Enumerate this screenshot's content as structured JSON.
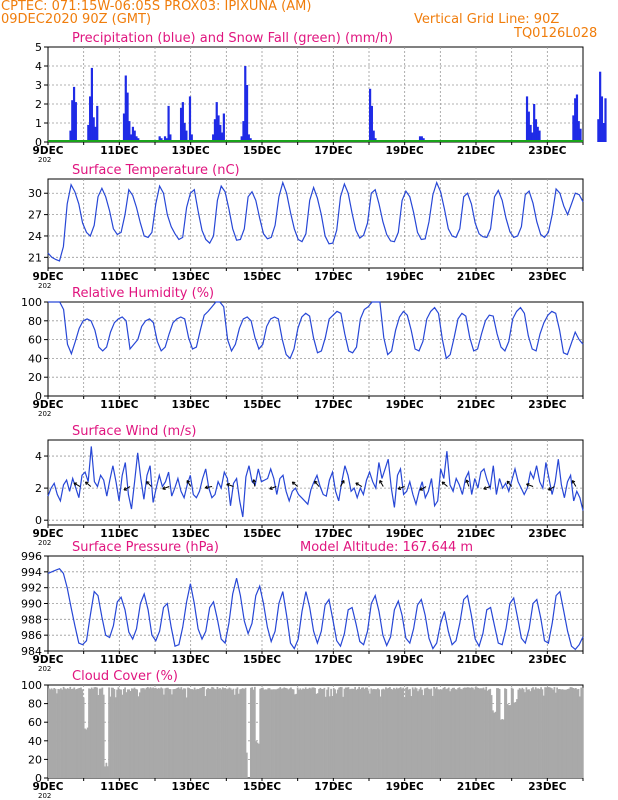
{
  "header": {
    "line1": "CPTEC:    071:15W-06:05S   PROX03: IPIXUNA (AM)",
    "line2_left": "09DEC2020 90Z (GMT)",
    "line2_right": "Vertical Grid Line: 90Z",
    "line3_right": "TQ0126L028"
  },
  "colors": {
    "header_text": "#f07d0c",
    "panel_title": "#e0157f",
    "series_line": "#2747d6",
    "bars_precip": "#1f2be6",
    "bars_snow": "#1aa31a",
    "cloud_fill": "#a9a9a9",
    "arrow": "#000000"
  },
  "x_axis": {
    "tick_labels": [
      "9DEC",
      "11DEC",
      "13DEC",
      "15DEC",
      "17DEC",
      "19DEC",
      "21DEC",
      "23DEC"
    ],
    "year_fragment": "202"
  },
  "chart_data": [
    {
      "type": "bar",
      "title": "Precipitation (blue) and Snow Fall (green) (mm/h)",
      "ylim": [
        0,
        5
      ],
      "yticks": [
        "0",
        "1",
        "2",
        "3",
        "4",
        "5"
      ],
      "series": [
        {
          "name": "Precipitation",
          "type": "bar",
          "x_days": [
            0.6,
            0.65,
            0.7,
            0.75,
            1.1,
            1.15,
            1.2,
            1.25,
            1.3,
            1.35,
            2.1,
            2.15,
            2.2,
            2.25,
            2.3,
            2.35,
            2.4,
            2.45,
            2.5,
            3.1,
            3.15,
            3.2,
            3.25,
            3.3,
            3.35,
            3.4,
            3.7,
            3.75,
            3.8,
            3.85,
            3.9,
            3.95,
            4.0,
            4.6,
            4.65,
            4.7,
            4.75,
            4.8,
            4.85,
            4.9,
            5.4,
            5.45,
            5.5,
            5.55,
            5.6,
            5.65,
            5.7,
            5.75,
            6.0,
            9.0,
            9.05,
            9.1,
            9.15,
            10.4,
            10.45,
            10.5,
            13.4,
            13.45,
            13.5,
            13.55,
            13.6,
            13.65,
            13.7,
            13.75,
            14.7,
            14.75,
            14.8,
            14.85,
            14.9,
            15.4,
            15.45,
            15.5,
            15.55,
            15.6
          ],
          "values": [
            0.6,
            2.2,
            2.9,
            2.1,
            0.9,
            2.4,
            3.9,
            1.3,
            0.8,
            1.9,
            1.5,
            3.5,
            2.6,
            1.1,
            0.4,
            0.8,
            0.6,
            0.3,
            0.2,
            0.3,
            0.2,
            0.1,
            0.3,
            0.2,
            1.9,
            0.4,
            1.8,
            2.1,
            1.0,
            0.6,
            0.1,
            2.4,
            0.4,
            0.4,
            1.2,
            2.1,
            1.4,
            0.9,
            0.5,
            1.5,
            0.3,
            1.1,
            4.0,
            3.0,
            0.4,
            0.2,
            0.1,
            0.0,
            0.1,
            2.8,
            1.9,
            0.6,
            0.2,
            0.3,
            0.3,
            0.2,
            2.4,
            1.6,
            0.9,
            0.5,
            2.0,
            1.2,
            0.8,
            0.6,
            1.4,
            2.3,
            2.5,
            1.1,
            0.7,
            1.2,
            3.7,
            2.4,
            1.0,
            2.3
          ]
        },
        {
          "name": "Snow Fall",
          "type": "line",
          "values_note": "0"
        }
      ]
    },
    {
      "type": "line",
      "title": "Surface Temperature (nC)",
      "ylim": [
        19.5,
        32
      ],
      "yticks": [
        "21",
        "24",
        "27",
        "30"
      ],
      "x_days_step": 0.25,
      "values": [
        21.6,
        21.0,
        20.7,
        20.5,
        22.5,
        28.5,
        31.2,
        30.2,
        28.5,
        25.8,
        24.5,
        24.0,
        25.5,
        29.5,
        30.7,
        29.5,
        27.5,
        25.0,
        24.2,
        24.5,
        27.0,
        30.5,
        29.7,
        28.0,
        25.8,
        24.0,
        23.8,
        24.5,
        28.5,
        31.0,
        30.0,
        27.0,
        25.3,
        24.3,
        23.5,
        23.8,
        28.0,
        30.0,
        30.5,
        27.5,
        24.8,
        23.5,
        23.0,
        24.0,
        29.0,
        31.0,
        30.2,
        27.8,
        25.0,
        23.4,
        23.5,
        25.0,
        29.5,
        30.2,
        29.0,
        26.5,
        24.3,
        23.6,
        23.8,
        25.5,
        29.5,
        31.5,
        30.0,
        27.3,
        25.0,
        23.5,
        23.2,
        24.3,
        29.0,
        30.8,
        29.3,
        27.0,
        24.0,
        22.9,
        23.0,
        24.8,
        29.5,
        31.3,
        30.0,
        27.2,
        24.8,
        23.7,
        24.1,
        25.8,
        30.0,
        30.5,
        28.5,
        26.0,
        24.2,
        23.3,
        23.2,
        24.5,
        29.0,
        30.3,
        29.5,
        27.3,
        24.5,
        23.5,
        23.6,
        26.0,
        29.8,
        31.5,
        30.2,
        27.8,
        25.0,
        24.0,
        23.8,
        25.0,
        29.5,
        30.0,
        28.5,
        25.8,
        24.3,
        23.9,
        23.8,
        25.0,
        29.5,
        30.4,
        29.0,
        26.5,
        24.6,
        23.8,
        24.0,
        25.3,
        29.8,
        30.3,
        28.6,
        26.0,
        24.2,
        23.8,
        24.5,
        27.0,
        30.6,
        30.0,
        28.2,
        27.0,
        28.5,
        30.0,
        29.8,
        28.8
      ]
    },
    {
      "type": "line",
      "title": "Relative Humidity (%)",
      "ylim": [
        0,
        100
      ],
      "yticks": [
        "0",
        "20",
        "40",
        "60",
        "80",
        "100"
      ],
      "x_days_step": 0.25,
      "values": [
        100,
        100,
        100,
        100,
        92,
        55,
        45,
        58,
        72,
        80,
        82,
        80,
        70,
        52,
        48,
        52,
        68,
        78,
        82,
        84,
        80,
        50,
        55,
        60,
        74,
        80,
        82,
        78,
        58,
        48,
        52,
        66,
        78,
        82,
        84,
        82,
        62,
        50,
        52,
        70,
        86,
        90,
        95,
        100,
        100,
        95,
        60,
        48,
        55,
        72,
        82,
        84,
        80,
        62,
        50,
        55,
        74,
        82,
        84,
        82,
        60,
        44,
        40,
        50,
        72,
        84,
        88,
        85,
        62,
        46,
        48,
        62,
        82,
        86,
        90,
        88,
        66,
        48,
        46,
        52,
        82,
        92,
        95,
        100,
        100,
        100,
        62,
        44,
        48,
        70,
        84,
        90,
        86,
        70,
        50,
        48,
        58,
        82,
        90,
        94,
        88,
        60,
        40,
        44,
        62,
        82,
        88,
        85,
        62,
        48,
        50,
        66,
        80,
        86,
        85,
        66,
        52,
        48,
        58,
        82,
        90,
        94,
        88,
        64,
        50,
        48,
        66,
        78,
        86,
        90,
        88,
        70,
        46,
        44,
        56,
        68,
        60,
        55
      ]
    },
    {
      "type": "line",
      "title": "Surface Wind (m/s)",
      "ylim": [
        -0.3,
        5
      ],
      "yticks": [
        "0",
        "2",
        "4"
      ],
      "x_days_step": 0.2,
      "values": [
        1.5,
        2.0,
        2.3,
        1.6,
        1.2,
        2.2,
        2.5,
        1.8,
        2.6,
        2.0,
        1.4,
        2.8,
        3.0,
        2.4,
        4.6,
        2.4,
        2.1,
        2.8,
        2.5,
        1.5,
        2.5,
        3.4,
        2.4,
        1.2,
        2.8,
        3.6,
        1.6,
        0.7,
        2.4,
        4.2,
        2.6,
        1.3,
        2.8,
        3.4,
        1.1,
        2.0,
        2.8,
        2.1,
        2.4,
        3.0,
        1.5,
        2.0,
        2.6,
        1.8,
        1.4,
        2.2,
        2.8,
        1.6,
        1.4,
        1.8,
        2.6,
        3.2,
        2.0,
        1.4,
        1.6,
        2.4,
        2.0,
        3.0,
        2.6,
        0.9,
        2.3,
        2.6,
        1.2,
        0.2,
        2.7,
        3.4,
        2.4,
        2.2,
        3.2,
        2.4,
        2.5,
        2.6,
        3.2,
        2.6,
        1.6,
        2.6,
        2.8,
        1.8,
        1.2,
        1.8,
        2.0,
        1.6,
        1.4,
        1.2,
        1.0,
        1.9,
        2.4,
        2.8,
        2.1,
        1.6,
        1.5,
        2.5,
        3.0,
        1.8,
        1.2,
        2.4,
        3.4,
        2.8,
        1.8,
        2.0,
        1.4,
        2.0,
        1.6,
        2.5,
        3.0,
        2.4,
        2.0,
        3.6,
        2.6,
        3.2,
        3.8,
        2.0,
        0.8,
        2.8,
        3.2,
        1.6,
        1.8,
        2.4,
        1.6,
        1.0,
        1.8,
        2.4,
        1.4,
        1.8,
        2.6,
        0.9,
        1.2,
        3.2,
        2.6,
        4.3,
        2.2,
        1.8,
        2.6,
        2.2,
        1.6,
        2.6,
        3.0,
        1.6,
        2.6,
        2.0,
        3.0,
        3.2,
        2.5,
        2.0,
        3.4,
        1.6,
        2.6,
        2.0,
        2.3,
        1.8,
        2.5,
        3.2,
        2.4,
        2.0,
        1.6,
        2.0,
        3.0,
        2.6,
        3.4,
        2.4,
        2.0,
        3.6,
        2.6,
        1.6,
        2.4,
        3.8,
        2.2,
        1.4,
        2.4,
        2.8,
        1.2,
        1.8,
        1.4,
        0.6
      ],
      "arrows_note": "wind direction arrows drawn along series"
    },
    {
      "type": "line",
      "title": "Surface Pressure (hPa)",
      "annotation": "Model Altitude: 167.644 m",
      "ylim": [
        984,
        996
      ],
      "yticks": [
        "984",
        "986",
        "988",
        "990",
        "992",
        "994",
        "996"
      ],
      "x_days_step": 0.25,
      "values": [
        993.8,
        994.0,
        994.2,
        994.4,
        993.8,
        992.0,
        989.5,
        987.2,
        985.0,
        984.8,
        985.3,
        988.5,
        991.5,
        991.0,
        988.3,
        986.0,
        985.7,
        987.2,
        990.2,
        990.8,
        989.2,
        986.4,
        985.5,
        986.8,
        990.0,
        991.2,
        989.2,
        986.0,
        985.3,
        986.5,
        989.5,
        990.0,
        987.0,
        984.6,
        984.8,
        987.0,
        990.2,
        992.5,
        990.0,
        986.8,
        985.5,
        986.5,
        989.5,
        990.2,
        988.0,
        985.5,
        985.0,
        987.5,
        991.2,
        993.2,
        991.0,
        987.8,
        986.2,
        987.5,
        991.0,
        992.2,
        990.0,
        987.0,
        985.2,
        986.5,
        990.0,
        991.5,
        988.5,
        985.0,
        984.3,
        985.5,
        989.0,
        991.5,
        989.5,
        986.5,
        985.0,
        986.5,
        989.8,
        990.5,
        988.0,
        985.3,
        984.6,
        986.2,
        989.2,
        989.5,
        987.5,
        985.2,
        984.8,
        986.5,
        990.0,
        991.0,
        989.0,
        986.0,
        984.7,
        985.8,
        989.2,
        990.3,
        988.5,
        985.6,
        985.0,
        986.8,
        989.8,
        990.5,
        988.5,
        985.6,
        984.3,
        985.0,
        987.5,
        989.0,
        986.5,
        984.8,
        985.3,
        987.5,
        990.5,
        991.0,
        988.5,
        985.5,
        984.6,
        986.2,
        989.2,
        989.5,
        987.2,
        985.0,
        984.8,
        986.8,
        990.0,
        990.7,
        988.2,
        985.6,
        985.0,
        986.8,
        990.0,
        990.5,
        988.2,
        985.3,
        985.0,
        987.5,
        991.0,
        991.5,
        989.0,
        986.5,
        984.6,
        984.2,
        984.8,
        985.8
      ]
    },
    {
      "type": "area",
      "title": "Cloud Cover (%)",
      "ylim": [
        0,
        100
      ],
      "yticks": [
        "0",
        "20",
        "40",
        "60",
        "80",
        "100"
      ],
      "note": "nearly full overcast ~93-98% throughout with dips"
    }
  ]
}
